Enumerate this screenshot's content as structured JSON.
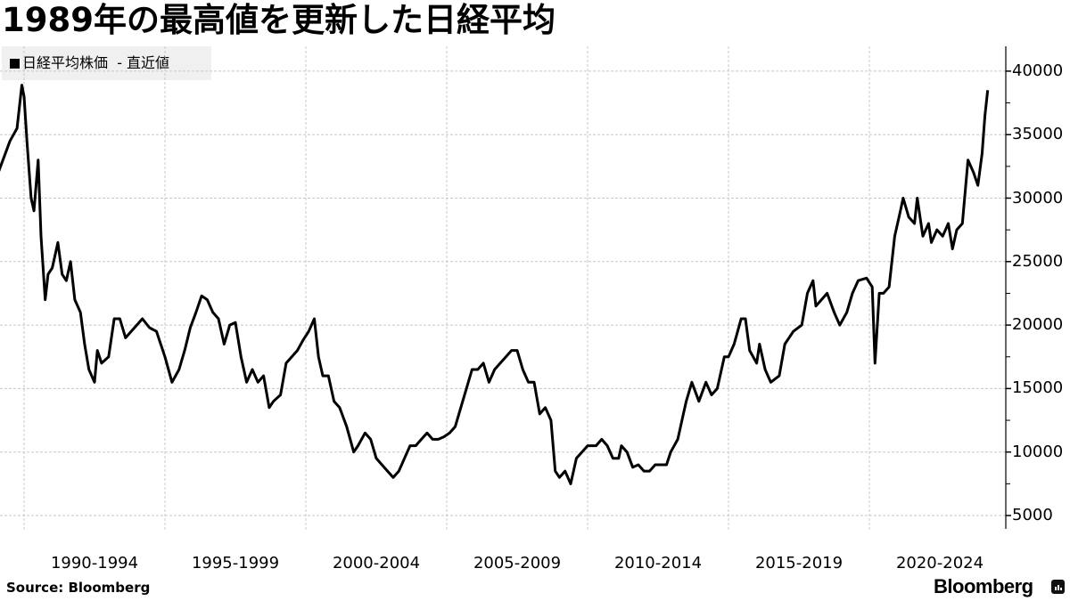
{
  "chart_data": {
    "type": "line",
    "title": "1989年の最高値を更新した日経平均",
    "legend": [
      {
        "label": "日経平均株価",
        "suffix": "- 直近値",
        "color": "#000000"
      }
    ],
    "legend_position": "top-left",
    "xlabel": "",
    "ylabel": "",
    "ylim": [
      4000,
      42000
    ],
    "yticks": [
      5000,
      10000,
      15000,
      20000,
      25000,
      30000,
      35000,
      40000
    ],
    "x_tick_labels": [
      "1990-1994",
      "1995-1999",
      "2000-2004",
      "2005-2009",
      "2010-2014",
      "2015-2019",
      "2020-2024"
    ],
    "grid": true,
    "series": [
      {
        "name": "日経平均株価",
        "x": [
          1989.0,
          1989.25,
          1989.5,
          1989.75,
          1989.92,
          1990.0,
          1990.1,
          1990.25,
          1990.35,
          1990.5,
          1990.6,
          1990.75,
          1990.85,
          1991.0,
          1991.2,
          1991.35,
          1991.5,
          1991.65,
          1991.8,
          1992.0,
          1992.15,
          1992.3,
          1992.5,
          1992.6,
          1992.75,
          1993.0,
          1993.2,
          1993.4,
          1993.6,
          1993.8,
          1994.0,
          1994.2,
          1994.45,
          1994.7,
          1995.0,
          1995.25,
          1995.5,
          1995.7,
          1995.9,
          1996.1,
          1996.3,
          1996.5,
          1996.7,
          1996.9,
          1997.1,
          1997.3,
          1997.5,
          1997.7,
          1997.9,
          1998.1,
          1998.3,
          1998.5,
          1998.7,
          1998.85,
          1999.1,
          1999.3,
          1999.5,
          1999.7,
          1999.9,
          2000.1,
          2000.3,
          2000.45,
          2000.6,
          2000.8,
          2001.0,
          2001.2,
          2001.45,
          2001.7,
          2001.85,
          2002.1,
          2002.3,
          2002.5,
          2002.7,
          2002.9,
          2003.1,
          2003.3,
          2003.5,
          2003.7,
          2003.9,
          2004.1,
          2004.3,
          2004.5,
          2004.7,
          2004.9,
          2005.1,
          2005.3,
          2005.5,
          2005.7,
          2005.9,
          2006.1,
          2006.3,
          2006.5,
          2006.7,
          2006.9,
          2007.1,
          2007.3,
          2007.5,
          2007.7,
          2007.9,
          2008.1,
          2008.3,
          2008.5,
          2008.7,
          2008.85,
          2009.0,
          2009.2,
          2009.4,
          2009.6,
          2009.8,
          2010.0,
          2010.3,
          2010.5,
          2010.7,
          2010.9,
          2011.1,
          2011.2,
          2011.4,
          2011.6,
          2011.8,
          2012.0,
          2012.2,
          2012.4,
          2012.6,
          2012.8,
          2012.95,
          2013.2,
          2013.4,
          2013.5,
          2013.7,
          2013.95,
          2014.2,
          2014.4,
          2014.6,
          2014.85,
          2015.0,
          2015.2,
          2015.45,
          2015.6,
          2015.75,
          2016.0,
          2016.1,
          2016.3,
          2016.5,
          2016.8,
          2017.0,
          2017.3,
          2017.6,
          2017.8,
          2018.0,
          2018.1,
          2018.3,
          2018.5,
          2018.75,
          2018.95,
          2019.2,
          2019.4,
          2019.6,
          2019.9,
          2020.1,
          2020.2,
          2020.35,
          2020.5,
          2020.7,
          2020.9,
          2021.1,
          2021.2,
          2021.4,
          2021.6,
          2021.7,
          2021.9,
          2022.1,
          2022.2,
          2022.4,
          2022.6,
          2022.8,
          2022.95,
          2023.1,
          2023.3,
          2023.5,
          2023.7,
          2023.85,
          2024.0,
          2024.1,
          2024.2
        ],
        "values": [
          31500,
          33000,
          34500,
          35500,
          38900,
          38000,
          34500,
          30000,
          29000,
          33000,
          27000,
          22000,
          24000,
          24500,
          26500,
          24000,
          23500,
          25000,
          22000,
          21000,
          18500,
          16500,
          15500,
          18000,
          17000,
          17500,
          20500,
          20500,
          19000,
          19500,
          20000,
          20500,
          19800,
          19500,
          17500,
          15500,
          16500,
          18000,
          19800,
          21000,
          22300,
          22000,
          21000,
          20500,
          18500,
          20000,
          20200,
          17500,
          15500,
          16500,
          15500,
          16000,
          13500,
          14000,
          14500,
          17000,
          17500,
          18000,
          18800,
          19500,
          20500,
          17500,
          16000,
          16000,
          14000,
          13500,
          12000,
          10000,
          10500,
          11500,
          11000,
          9500,
          9000,
          8500,
          8000,
          8500,
          9500,
          10500,
          10500,
          11000,
          11500,
          11000,
          11000,
          11200,
          11500,
          12000,
          13500,
          15000,
          16500,
          16500,
          17000,
          15500,
          16500,
          17000,
          17500,
          18000,
          18000,
          16500,
          15500,
          15500,
          13000,
          13500,
          12500,
          8500,
          8000,
          8500,
          7500,
          9500,
          10000,
          10500,
          10500,
          11000,
          10500,
          9500,
          9500,
          10500,
          10000,
          8800,
          9000,
          8500,
          8500,
          9000,
          9000,
          9000,
          10000,
          11000,
          13000,
          14000,
          15500,
          14000,
          15500,
          14500,
          15000,
          17500,
          17500,
          18500,
          20500,
          20500,
          18000,
          17000,
          18500,
          16500,
          15500,
          16000,
          18500,
          19500,
          20000,
          22500,
          23500,
          21500,
          22000,
          22500,
          21000,
          20000,
          21000,
          22500,
          23500,
          23700,
          23000,
          17000,
          22500,
          22500,
          23000,
          27000,
          29000,
          30000,
          28500,
          28000,
          30000,
          27000,
          28000,
          26500,
          27500,
          27000,
          28000,
          26000,
          27500,
          28000,
          33000,
          32000,
          31000,
          33500,
          36500,
          38500
        ]
      }
    ]
  },
  "legend": {
    "label": "日経平均株価",
    "suffix": "  - 直近値"
  },
  "axis": {
    "y_ticks": [
      {
        "label": "40000",
        "value": 40000
      },
      {
        "label": "35000",
        "value": 35000
      },
      {
        "label": "30000",
        "value": 30000
      },
      {
        "label": "25000",
        "value": 25000
      },
      {
        "label": "20000",
        "value": 20000
      },
      {
        "label": "15000",
        "value": 15000
      },
      {
        "label": "10000",
        "value": 10000
      },
      {
        "label": "5000",
        "value": 5000
      }
    ],
    "x_ticks": [
      {
        "label": "1990-1994",
        "center": 1992.5
      },
      {
        "label": "1995-1999",
        "center": 1997.5
      },
      {
        "label": "2000-2004",
        "center": 2002.5
      },
      {
        "label": "2005-2009",
        "center": 2007.5
      },
      {
        "label": "2010-2014",
        "center": 2012.5
      },
      {
        "label": "2015-2019",
        "center": 2017.5
      },
      {
        "label": "2020-2024",
        "center": 2022.5
      }
    ]
  },
  "footer": {
    "source": "Source:  Bloomberg",
    "brand": "Bloomberg"
  },
  "colors": {
    "line": "#000000",
    "grid": "#c8c8c8",
    "legend_bg": "#f0f0f0"
  }
}
